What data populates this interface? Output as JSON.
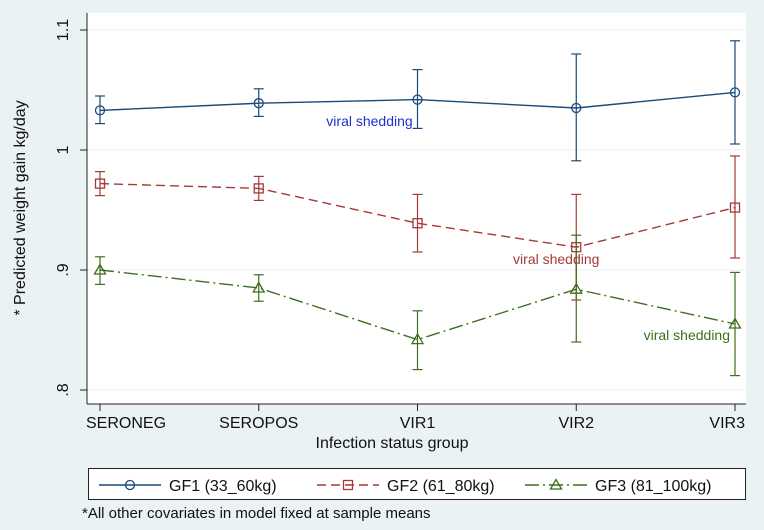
{
  "chart_data": {
    "type": "line",
    "categories": [
      "SERONEG",
      "SEROPOS",
      "VIR1",
      "VIR2",
      "VIR3"
    ],
    "xlabel": "Infection status group",
    "ylabel": "* Predicted weight gain kg/day",
    "ylim": [
      0.8,
      1.1
    ],
    "yticks": [
      {
        "value": 0.8,
        "label": ".8"
      },
      {
        "value": 0.9,
        "label": ".9"
      },
      {
        "value": 1.0,
        "label": "1"
      },
      {
        "value": 1.1,
        "label": "1.1"
      }
    ],
    "grid": "horizontal",
    "legend_position": "bottom",
    "series": [
      {
        "name": "GF1 (33_60kg)",
        "color": "#1a4a7a",
        "marker": "circle",
        "line_style": "solid",
        "values": [
          1.033,
          1.039,
          1.042,
          1.035,
          1.048
        ],
        "ci_low": [
          1.022,
          1.028,
          1.018,
          0.991,
          1.005
        ],
        "ci_high": [
          1.045,
          1.051,
          1.067,
          1.08,
          1.091
        ]
      },
      {
        "name": "GF2 (61_80kg)",
        "color": "#a33a35",
        "marker": "square",
        "line_style": "dashed",
        "values": [
          0.972,
          0.968,
          0.939,
          0.919,
          0.952
        ],
        "ci_low": [
          0.962,
          0.958,
          0.915,
          0.875,
          0.91
        ],
        "ci_high": [
          0.982,
          0.978,
          0.963,
          0.963,
          0.995
        ]
      },
      {
        "name": "GF3 (81_100kg)",
        "color": "#3f6e1c",
        "marker": "triangle",
        "line_style": "dashdot",
        "values": [
          0.9,
          0.885,
          0.842,
          0.884,
          0.855
        ],
        "ci_low": [
          0.888,
          0.874,
          0.817,
          0.84,
          0.812
        ],
        "ci_high": [
          0.911,
          0.896,
          0.866,
          0.929,
          0.898
        ]
      }
    ],
    "annotations": [
      {
        "text": "viral shedding",
        "color": "#1f2fd0",
        "x": "VIR1",
        "y": 1.024
      },
      {
        "text": "viral shedding",
        "color": "#a33a35",
        "x": "VIR2",
        "y": 0.909
      },
      {
        "text": "viral shedding",
        "color": "#3f6e1c",
        "x": "VIR3",
        "y": 0.846
      }
    ],
    "footnote": "*All other covariates in model fixed at sample means"
  }
}
